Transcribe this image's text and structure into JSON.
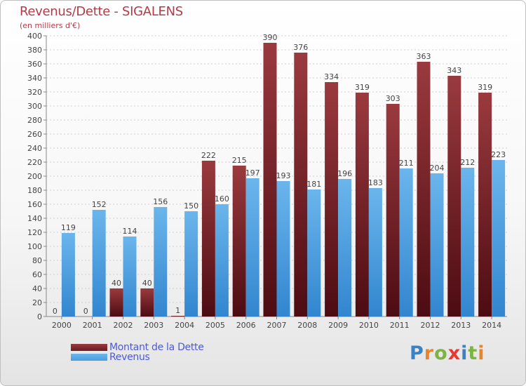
{
  "header": {
    "title": "Revenus/Dette - SIGALENS",
    "subtitle": "(en milliers d'€)"
  },
  "legend": {
    "items": [
      {
        "label": "Montant de la Dette",
        "color": "#6b1c23"
      },
      {
        "label": "Revenus",
        "color": "#4a9de0"
      }
    ]
  },
  "logo": {
    "text": "Proxiti",
    "colors": [
      "#3b82c4",
      "#e8852a",
      "#7cb342",
      "#e53935",
      "#3b82c4",
      "#7cb342",
      "#e8852a"
    ]
  },
  "colors": {
    "dette_top": "#9a3a3e",
    "dette_bottom": "#4c0c12",
    "revenus_top": "#6bb5ec",
    "revenus_bottom": "#3286cf",
    "grid": "#d0d0d0",
    "tick_text": "#444444",
    "value_text": "#444444"
  },
  "chart_data": {
    "type": "bar",
    "title": "Revenus/Dette - SIGALENS",
    "subtitle": "(en milliers d'€)",
    "categories": [
      "2000",
      "2001",
      "2002",
      "2003",
      "2004",
      "2005",
      "2006",
      "2007",
      "2008",
      "2009",
      "2010",
      "2011",
      "2012",
      "2013",
      "2014"
    ],
    "series": [
      {
        "name": "Montant de la Dette",
        "values": [
          0,
          0,
          40,
          40,
          1,
          222,
          215,
          390,
          376,
          334,
          319,
          303,
          363,
          343,
          319
        ]
      },
      {
        "name": "Revenus",
        "values": [
          119,
          152,
          114,
          156,
          150,
          160,
          197,
          193,
          181,
          196,
          183,
          211,
          204,
          212,
          223
        ]
      }
    ],
    "ylim": [
      0,
      400
    ],
    "ytick_step": 20,
    "grid": true,
    "legend_position": "bottom-left"
  }
}
